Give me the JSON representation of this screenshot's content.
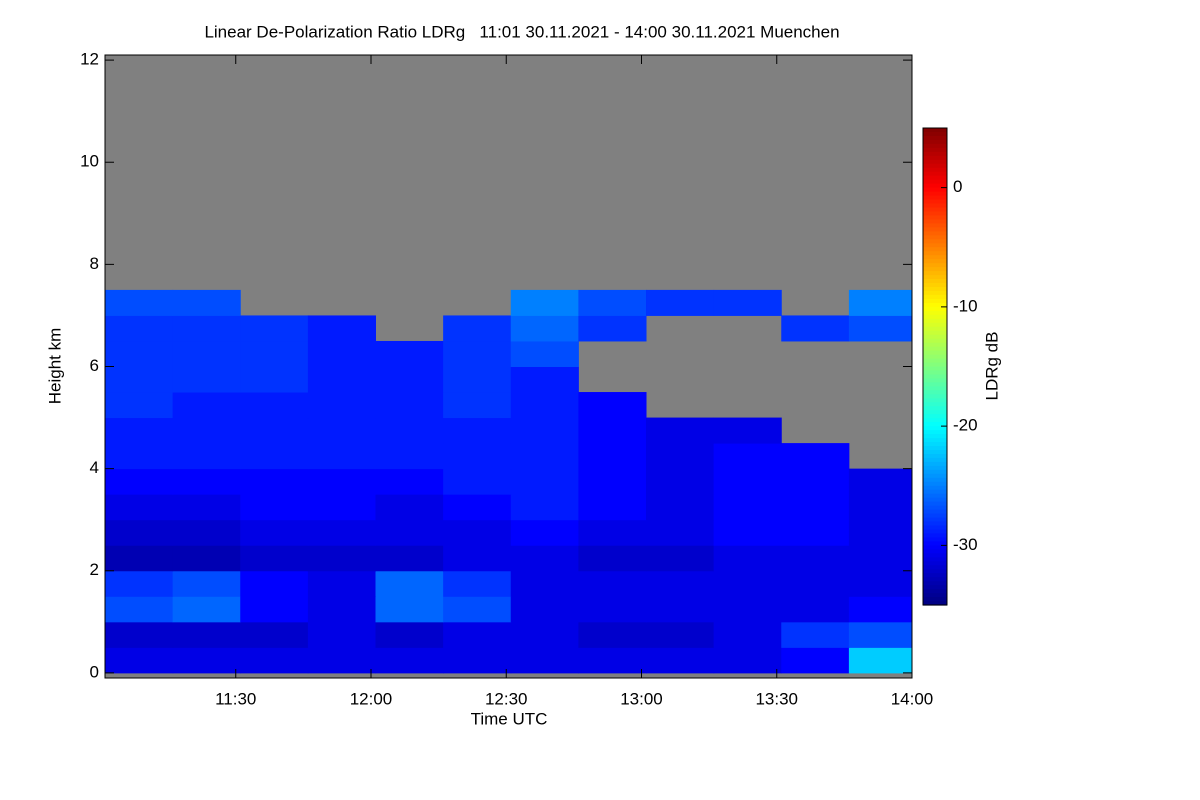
{
  "chart_data": {
    "type": "heatmap",
    "title": "Linear De-Polarization Ratio LDRg   11:01 30.11.2021 - 14:00 30.11.2021 Muenchen",
    "xlabel": "Time UTC",
    "ylabel": "Height km",
    "xlim": [
      661,
      840
    ],
    "ylim": [
      -0.1,
      12.1
    ],
    "xticks": [
      {
        "value": 690,
        "label": "11:30"
      },
      {
        "value": 720,
        "label": "12:00"
      },
      {
        "value": 750,
        "label": "12:30"
      },
      {
        "value": 780,
        "label": "13:00"
      },
      {
        "value": 810,
        "label": "13:30"
      },
      {
        "value": 840,
        "label": "14:00"
      }
    ],
    "yticks": [
      0,
      2,
      4,
      6,
      8,
      10,
      12
    ],
    "xbins": [
      661,
      676,
      691,
      706,
      721,
      736,
      751,
      766,
      781,
      796,
      811,
      826,
      840
    ],
    "ybins": [
      0,
      0.5,
      1,
      1.5,
      2,
      2.5,
      3,
      3.5,
      4,
      4.5,
      5,
      5.5,
      6,
      6.5,
      7,
      7.5
    ],
    "z": [
      [
        -31,
        -31,
        -31,
        -31,
        -31,
        -31,
        -31,
        -31,
        -31,
        -31,
        -30,
        -22
      ],
      [
        -32,
        -32,
        -32,
        -31,
        -32,
        -31,
        -31,
        -32,
        -32,
        -31,
        -28,
        -27
      ],
      [
        -27,
        -26,
        -30,
        -31,
        -26,
        -27,
        -31,
        -31,
        -31,
        -31,
        -31,
        -30
      ],
      [
        -28,
        -27,
        -30,
        -31,
        -26,
        -28,
        -31,
        -31,
        -31,
        -31,
        -31,
        -31
      ],
      [
        -33,
        -33,
        -32,
        -32,
        -32,
        -31,
        -31,
        -32,
        -32,
        -31,
        -31,
        -31
      ],
      [
        -32,
        -32,
        -31,
        -31,
        -31,
        -31,
        -30,
        -31,
        -31,
        -30,
        -30,
        -31
      ],
      [
        -31,
        -31,
        -30,
        -30,
        -31,
        -30,
        -29,
        -30,
        -31,
        -30,
        -30,
        -31
      ],
      [
        -30,
        -30,
        -30,
        -30,
        -30,
        -29,
        -29,
        -30,
        -31,
        -30,
        -30,
        -31
      ],
      [
        -29,
        -29,
        -29,
        -29,
        -29,
        -29,
        -29,
        -30,
        -31,
        -30,
        -30,
        null
      ],
      [
        -29,
        -29,
        -29,
        -29,
        -29,
        -29,
        -29,
        -30,
        -31,
        -31,
        null,
        null
      ],
      [
        -28,
        -29,
        -29,
        -29,
        -29,
        -28,
        -29,
        -30,
        null,
        null,
        null,
        null
      ],
      [
        -28,
        -28,
        -28,
        -29,
        -29,
        -28,
        -29,
        null,
        null,
        null,
        null,
        null
      ],
      [
        -28,
        -28,
        -28,
        -29,
        -29,
        -28,
        -27,
        null,
        null,
        null,
        null,
        null
      ],
      [
        -28,
        -28,
        -28,
        -29,
        null,
        -28,
        -26,
        -28,
        null,
        null,
        -28,
        -27
      ],
      [
        -27,
        -27,
        null,
        null,
        null,
        null,
        -25,
        -27,
        -28,
        -28,
        null,
        -25
      ]
    ],
    "colormap": "jet",
    "missing_color": "#808080",
    "colorbar": {
      "label": "LDRg dB",
      "lim": [
        -35,
        5
      ],
      "ticks": [
        0,
        -10,
        -20,
        -30
      ]
    }
  }
}
